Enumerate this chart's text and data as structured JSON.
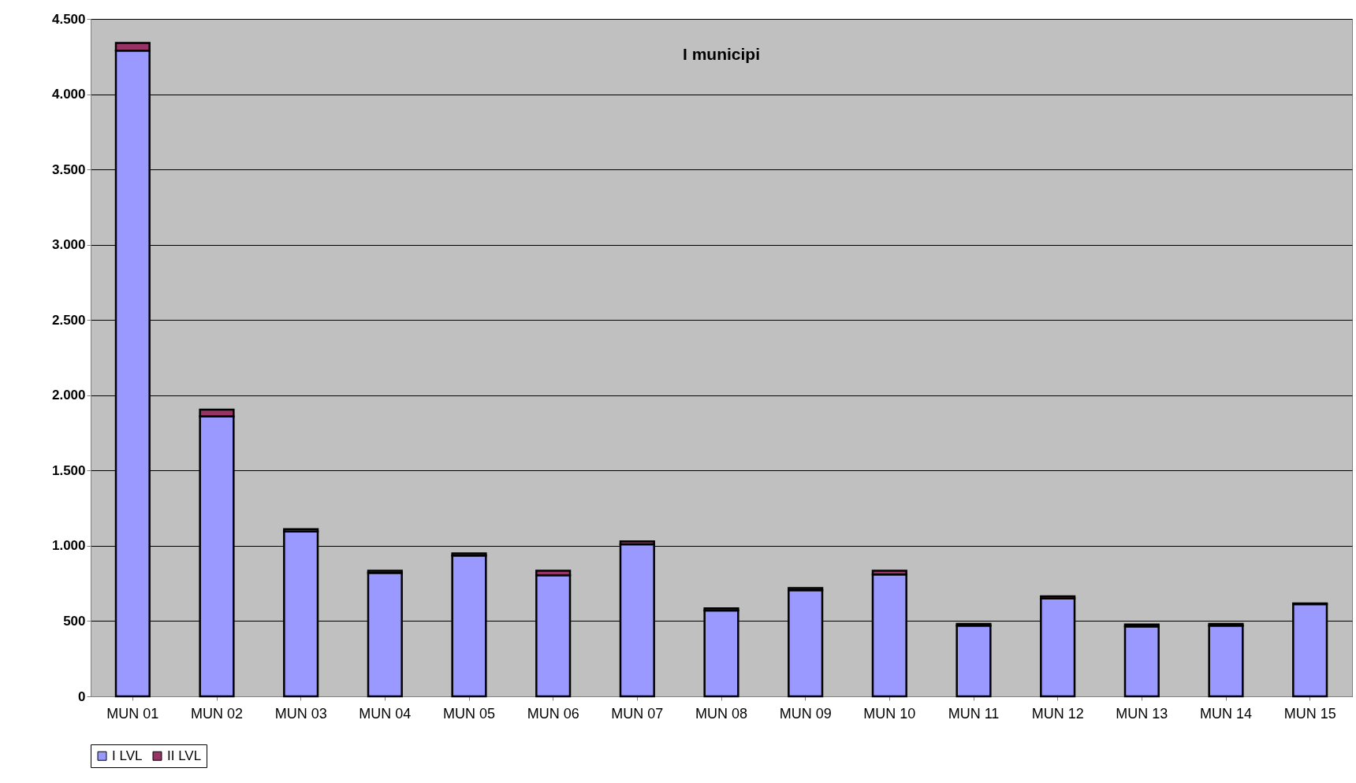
{
  "chart_data": {
    "type": "bar",
    "title": "I municipi",
    "stacked": true,
    "categories": [
      "MUN 01",
      "MUN 02",
      "MUN 03",
      "MUN 04",
      "MUN 05",
      "MUN 06",
      "MUN 07",
      "MUN 08",
      "MUN 09",
      "MUN 10",
      "MUN 11",
      "MUN 12",
      "MUN 13",
      "MUN 14",
      "MUN 15"
    ],
    "series": [
      {
        "name": "I LVL",
        "color": "#9999ff",
        "values": [
          4290,
          1860,
          1095,
          820,
          935,
          805,
          1010,
          570,
          705,
          810,
          470,
          650,
          465,
          470,
          612
        ]
      },
      {
        "name": "II LVL",
        "color": "#993366",
        "values": [
          50,
          45,
          15,
          15,
          15,
          30,
          20,
          15,
          15,
          25,
          12,
          15,
          12,
          12,
          6
        ]
      }
    ],
    "ylim": [
      0,
      4500
    ],
    "yticks": [
      0,
      {
        "value": 500,
        "label": "500"
      },
      {
        "value": 1000,
        "label": "1.000"
      },
      {
        "value": 1500,
        "label": "1.500"
      },
      {
        "value": 2000,
        "label": "2.000"
      },
      {
        "value": 2500,
        "label": "2.500"
      },
      {
        "value": 3000,
        "label": "3.000"
      },
      {
        "value": 3500,
        "label": "3.500"
      },
      {
        "value": 4000,
        "label": "4.000"
      },
      {
        "value": 4500,
        "label": "4.500"
      }
    ],
    "grid": "y",
    "legend": "bottom"
  }
}
